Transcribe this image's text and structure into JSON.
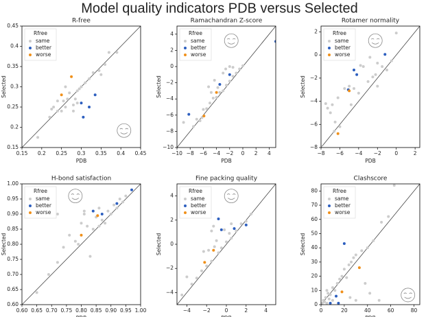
{
  "title": "Model quality indicators PDB versus Selected",
  "chart_data": [
    {
      "type": "scatter",
      "title": "R-free",
      "x_label": "PDB",
      "y_label": "Selected",
      "legend_title": "Rfree",
      "legend": "upper left",
      "diagonal": true,
      "xlim": [
        0.15,
        0.45
      ],
      "ylim": [
        0.15,
        0.45
      ],
      "xticks": [
        0.15,
        0.2,
        0.25,
        0.3,
        0.35,
        0.4,
        0.45
      ],
      "yticks": [
        0.15,
        0.2,
        0.25,
        0.3,
        0.35,
        0.4,
        0.45
      ],
      "series": [
        {
          "name": "same",
          "color": "#cccccc",
          "x": [
            0.19,
            0.22,
            0.225,
            0.23,
            0.24,
            0.25,
            0.255,
            0.26,
            0.265,
            0.27,
            0.28,
            0.285,
            0.29,
            0.295,
            0.3,
            0.31,
            0.32,
            0.33,
            0.345,
            0.35,
            0.36,
            0.37,
            0.39,
            0.24,
            0.28,
            0.26,
            0.29
          ],
          "values": [
            0.175,
            0.225,
            0.245,
            0.25,
            0.24,
            0.24,
            0.265,
            0.25,
            0.27,
            0.285,
            0.255,
            0.27,
            0.29,
            0.295,
            0.3,
            0.31,
            0.32,
            0.335,
            0.34,
            0.33,
            0.355,
            0.385,
            0.385,
            0.265,
            0.24,
            0.3,
            0.26
          ]
        },
        {
          "name": "better",
          "color": "#2d5fbf",
          "x": [
            0.3,
            0.32,
            0.305,
            0.335
          ],
          "values": [
            0.26,
            0.25,
            0.225,
            0.28
          ]
        },
        {
          "name": "worse",
          "color": "#f0901a",
          "x": [
            0.25,
            0.275
          ],
          "values": [
            0.28,
            0.325
          ]
        }
      ]
    },
    {
      "type": "scatter",
      "title": "Ramachandran Z-score",
      "x_label": "PDB",
      "y_label": "Selected",
      "legend_title": "Rfree",
      "legend": "upper left",
      "diagonal": true,
      "xlim": [
        -10,
        5
      ],
      "ylim": [
        -10,
        5
      ],
      "xticks": [
        {
          "value": -10,
          "label": "−10"
        },
        {
          "value": -8,
          "label": "−8"
        },
        {
          "value": -6,
          "label": "−6"
        },
        {
          "value": -4,
          "label": "−4"
        },
        {
          "value": -2,
          "label": "−2"
        },
        0,
        2,
        4
      ],
      "yticks": [
        {
          "value": -10,
          "label": "−10"
        },
        {
          "value": -8,
          "label": "−8"
        },
        {
          "value": -6,
          "label": "−6"
        },
        {
          "value": -4,
          "label": "−4"
        },
        {
          "value": -2,
          "label": "−2"
        },
        0,
        2,
        4
      ],
      "series": [
        {
          "name": "same",
          "color": "#cccccc",
          "x": [
            -9,
            -7.5,
            -6.5,
            -6,
            -5.5,
            -5,
            -4.8,
            -4.5,
            -4,
            -3.5,
            -3,
            -2.5,
            -2,
            -1.5,
            -1,
            -0.5,
            0,
            -5.2,
            -4.3,
            -3,
            -2.6,
            -2,
            -3.8,
            -6.2,
            -7,
            -1.5
          ],
          "values": [
            -6.9,
            -7.4,
            -6.7,
            -5.3,
            -5.2,
            -4.5,
            -3.2,
            -3.9,
            -3.8,
            -3.2,
            -3,
            -2.3,
            -1.8,
            -1.2,
            -0.8,
            -0.3,
            0.1,
            -2.5,
            -1.7,
            -0.8,
            -0.3,
            0,
            -2.6,
            -6.3,
            -6.5,
            -0.1
          ]
        },
        {
          "name": "better",
          "color": "#2d5fbf",
          "x": [
            -8.2,
            -3.5,
            -2,
            5
          ],
          "values": [
            -5.9,
            -2.2,
            -1,
            3.1
          ]
        },
        {
          "name": "worse",
          "color": "#f0901a",
          "x": [
            -5.9,
            -4
          ],
          "values": [
            -6.1,
            -3.2
          ]
        }
      ]
    },
    {
      "type": "scatter",
      "title": "Rotamer normality",
      "x_label": "PDB",
      "y_label": "Selected",
      "legend_title": "Rfree",
      "legend": "upper left",
      "diagonal": true,
      "xlim": [
        -8,
        2.5
      ],
      "ylim": [
        -8,
        2.5
      ],
      "xticks": [
        {
          "value": -8,
          "label": "−8"
        },
        {
          "value": -6,
          "label": "−6"
        },
        {
          "value": -4,
          "label": "−4"
        },
        {
          "value": -2,
          "label": "−2"
        },
        0,
        2
      ],
      "yticks": [
        {
          "value": -8,
          "label": "−8"
        },
        {
          "value": -6,
          "label": "−6"
        },
        {
          "value": -4,
          "label": "−4"
        },
        {
          "value": -2,
          "label": "−2"
        },
        0,
        2
      ],
      "series": [
        {
          "name": "same",
          "color": "#cccccc",
          "x": [
            -8,
            -7.5,
            -7.3,
            -7,
            -6.8,
            -6.5,
            -6.2,
            -6,
            -5.5,
            -5,
            -4.8,
            -4.5,
            -4,
            -3.5,
            -3,
            -2.8,
            -2.5,
            -2.2,
            -2,
            -1.5,
            -1,
            -0.5,
            0,
            -3.8,
            -6.6,
            -2
          ],
          "values": [
            -7.9,
            -4.2,
            -4.6,
            -5,
            -4.3,
            -5.8,
            -3.7,
            -6.2,
            -2.9,
            -2.7,
            -4.3,
            -2.9,
            -3.3,
            -1,
            -2.3,
            -0.2,
            -1.9,
            -1.7,
            -0.7,
            -1,
            -1.3,
            -0.5,
            1.9,
            -0.9,
            -6.6,
            -2.7
          ]
        },
        {
          "name": "better",
          "color": "#2d5fbf",
          "x": [
            -4.5,
            -4.2,
            -1.2,
            -5.1
          ],
          "values": [
            -1.3,
            -1.7,
            0.05,
            -3
          ]
        },
        {
          "name": "worse",
          "color": "#f0901a",
          "x": [
            -6.2,
            -5
          ],
          "values": [
            -6.8,
            -3.1
          ]
        }
      ]
    },
    {
      "type": "scatter",
      "title": "H-bond satisfaction",
      "x_label": "PDB",
      "y_label": "Selected",
      "legend_title": "Rfree",
      "legend": "upper left",
      "diagonal": true,
      "xlim": [
        0.6,
        1.0
      ],
      "ylim": [
        0.6,
        1.0
      ],
      "xticks": [
        {
          "value": 0.6,
          "label": "0.60"
        },
        0.65,
        {
          "value": 0.7,
          "label": "0.70"
        },
        0.75,
        {
          "value": 0.8,
          "label": "0.80"
        },
        0.85,
        {
          "value": 0.9,
          "label": "0.90"
        },
        0.95,
        {
          "value": 1.0,
          "label": "1.00"
        }
      ],
      "yticks": [
        {
          "value": 0.6,
          "label": "0.60"
        },
        0.65,
        {
          "value": 0.7,
          "label": "0.70"
        },
        0.75,
        {
          "value": 0.8,
          "label": "0.80"
        },
        0.85,
        {
          "value": 0.9,
          "label": "0.90"
        },
        0.95,
        {
          "value": 1.0,
          "label": "1.00"
        }
      ],
      "series": [
        {
          "name": "same",
          "color": "#cccccc",
          "x": [
            0.65,
            0.69,
            0.72,
            0.74,
            0.76,
            0.78,
            0.8,
            0.81,
            0.82,
            0.83,
            0.84,
            0.85,
            0.86,
            0.86,
            0.87,
            0.88,
            0.89,
            0.9,
            0.91,
            0.92,
            0.93,
            0.94,
            0.95,
            0.72,
            0.81,
            0.79
          ],
          "values": [
            0.64,
            0.7,
            0.74,
            0.79,
            0.83,
            0.81,
            0.87,
            0.91,
            0.86,
            0.76,
            0.85,
            0.89,
            0.86,
            0.92,
            0.88,
            0.87,
            0.91,
            0.9,
            0.93,
            0.92,
            0.95,
            0.94,
            0.96,
            0.9,
            0.9,
            0.8
          ]
        },
        {
          "name": "better",
          "color": "#2d5fbf",
          "x": [
            0.84,
            0.87,
            0.92,
            0.97
          ],
          "values": [
            0.91,
            0.9,
            0.935,
            0.98
          ]
        },
        {
          "name": "worse",
          "color": "#f0901a",
          "x": [
            0.8,
            0.855
          ],
          "values": [
            0.83,
            0.895
          ]
        }
      ]
    },
    {
      "type": "scatter",
      "title": "Fine packing quality",
      "x_label": "PDB",
      "y_label": "Selected",
      "legend_title": "Rfree",
      "legend": "upper left",
      "diagonal": true,
      "xlim": [
        -5,
        5
      ],
      "ylim": [
        -5,
        5
      ],
      "xticks": [
        {
          "value": -4,
          "label": "−4"
        },
        {
          "value": -2,
          "label": "−2"
        },
        0,
        2,
        4
      ],
      "yticks": [
        {
          "value": -4,
          "label": "−4"
        },
        {
          "value": -2,
          "label": "−2"
        },
        0,
        2,
        4
      ],
      "series": [
        {
          "name": "same",
          "color": "#cccccc",
          "x": [
            -4.5,
            -4,
            -3.5,
            -3,
            -2.5,
            -2,
            -1.8,
            -1.5,
            -1.2,
            -1,
            -0.8,
            -0.5,
            0,
            0.3,
            0.5,
            1,
            1.5,
            2,
            2.5,
            -1.3,
            -0.2,
            0.5,
            -2.3,
            -1.5
          ],
          "values": [
            -4.2,
            -2.7,
            -3.3,
            -2.8,
            -2.2,
            -1.8,
            -0.5,
            -1.4,
            -0.2,
            0.3,
            -0.7,
            -0.3,
            0.2,
            0.9,
            0.5,
            1.1,
            1.7,
            1.9,
            2.5,
            1.5,
            1.2,
            1.7,
            -0.6,
            1.1
          ]
        },
        {
          "name": "better",
          "color": "#2d5fbf",
          "x": [
            -0.8,
            -0.5,
            0.8,
            2
          ],
          "values": [
            2.1,
            1.2,
            1.3,
            1.6
          ]
        },
        {
          "name": "worse",
          "color": "#f0901a",
          "x": [
            -2.2,
            -1.3
          ],
          "values": [
            -1.5,
            -0.5
          ]
        }
      ]
    },
    {
      "type": "scatter",
      "title": "Clashscore",
      "x_label": "PDB",
      "y_label": "Selected",
      "legend_title": "Rfree",
      "legend": "upper left",
      "diagonal": true,
      "xlim": [
        0,
        85
      ],
      "ylim": [
        0,
        85
      ],
      "xticks": [
        0,
        20,
        40,
        60,
        80
      ],
      "yticks": [
        0,
        10,
        20,
        30,
        40,
        50,
        60,
        70,
        80
      ],
      "series": [
        {
          "name": "same",
          "color": "#cccccc",
          "x": [
            1,
            2,
            3,
            4,
            5,
            6,
            7,
            8,
            10,
            12,
            14,
            16,
            18,
            20,
            22,
            24,
            26,
            28,
            30,
            35,
            40,
            45,
            52,
            58,
            63,
            38,
            42,
            50,
            25,
            30,
            10,
            5
          ],
          "values": [
            1,
            3,
            2,
            5,
            1,
            8,
            4,
            7,
            12,
            10,
            15,
            18,
            20,
            25,
            19,
            28,
            30,
            33,
            35,
            38,
            40,
            45,
            58,
            62,
            84,
            15,
            8,
            3,
            5,
            3,
            3,
            10
          ]
        },
        {
          "name": "better",
          "color": "#2d5fbf",
          "x": [
            20,
            13,
            15,
            8
          ],
          "values": [
            43,
            6,
            1,
            1
          ]
        },
        {
          "name": "worse",
          "color": "#f0901a",
          "x": [
            33,
            18
          ],
          "values": [
            26,
            9
          ]
        }
      ]
    }
  ]
}
